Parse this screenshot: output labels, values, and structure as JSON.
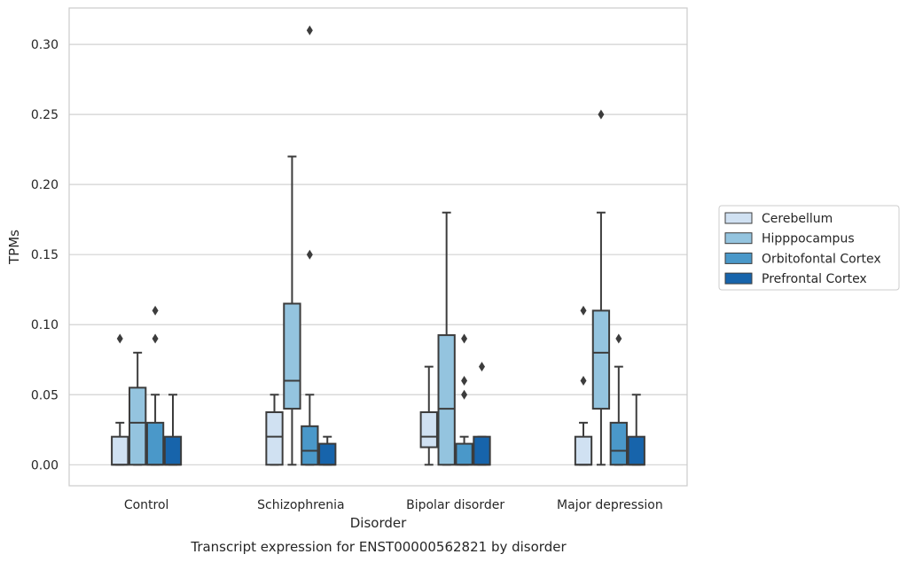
{
  "chart_data": {
    "type": "box",
    "title": "Transcript expression for ENST00000562821 by disorder",
    "xlabel": "Disorder",
    "ylabel": "TPMs",
    "ylim": [
      -0.015,
      0.326
    ],
    "yticks": [
      0.0,
      0.05,
      0.1,
      0.15,
      0.2,
      0.25,
      0.3
    ],
    "ytick_labels": [
      "0.00",
      "0.05",
      "0.10",
      "0.15",
      "0.20",
      "0.25",
      "0.30"
    ],
    "grid": true,
    "legend_position": "right",
    "categories": [
      "Control",
      "Schizophrenia",
      "Bipolar disorder",
      "Major depression"
    ],
    "series": [
      {
        "name": "Cerebellum",
        "color": "#d0e1f2",
        "boxes": [
          {
            "whislo": 0.0,
            "q1": 0.0,
            "med": 0.0,
            "q3": 0.02,
            "whishi": 0.03,
            "fliers": [
              0.09
            ]
          },
          {
            "whislo": 0.0,
            "q1": 0.0,
            "med": 0.02,
            "q3": 0.0375,
            "whishi": 0.05,
            "fliers": []
          },
          {
            "whislo": 0.0,
            "q1": 0.0125,
            "med": 0.02,
            "q3": 0.0375,
            "whishi": 0.07,
            "fliers": []
          },
          {
            "whislo": 0.0,
            "q1": 0.0,
            "med": 0.0,
            "q3": 0.02,
            "whishi": 0.03,
            "fliers": [
              0.06,
              0.11
            ]
          }
        ]
      },
      {
        "name": "Hipppocampus",
        "color": "#94c4df",
        "boxes": [
          {
            "whislo": 0.0,
            "q1": 0.0,
            "med": 0.03,
            "q3": 0.055,
            "whishi": 0.08,
            "fliers": []
          },
          {
            "whislo": 0.0,
            "q1": 0.04,
            "med": 0.06,
            "q3": 0.115,
            "whishi": 0.22,
            "fliers": []
          },
          {
            "whislo": 0.0,
            "q1": 0.0,
            "med": 0.04,
            "q3": 0.0925,
            "whishi": 0.18,
            "fliers": []
          },
          {
            "whislo": 0.0,
            "q1": 0.04,
            "med": 0.08,
            "q3": 0.11,
            "whishi": 0.18,
            "fliers": [
              0.25
            ]
          }
        ]
      },
      {
        "name": "Orbitofontal Cortex",
        "color": "#4a98c9",
        "boxes": [
          {
            "whislo": 0.0,
            "q1": 0.0,
            "med": 0.0,
            "q3": 0.03,
            "whishi": 0.05,
            "fliers": [
              0.09,
              0.11
            ]
          },
          {
            "whislo": 0.0,
            "q1": 0.0,
            "med": 0.01,
            "q3": 0.0275,
            "whishi": 0.05,
            "fliers": [
              0.15,
              0.31
            ]
          },
          {
            "whislo": 0.0,
            "q1": 0.0,
            "med": 0.0,
            "q3": 0.015,
            "whishi": 0.02,
            "fliers": [
              0.05,
              0.06,
              0.09
            ]
          },
          {
            "whislo": 0.0,
            "q1": 0.0,
            "med": 0.01,
            "q3": 0.03,
            "whishi": 0.07,
            "fliers": [
              0.09
            ]
          }
        ]
      },
      {
        "name": "Prefrontal Cortex",
        "color": "#1764ab",
        "boxes": [
          {
            "whislo": 0.0,
            "q1": 0.0,
            "med": 0.0,
            "q3": 0.02,
            "whishi": 0.05,
            "fliers": []
          },
          {
            "whislo": 0.0,
            "q1": 0.0,
            "med": 0.0,
            "q3": 0.015,
            "whishi": 0.02,
            "fliers": []
          },
          {
            "whislo": 0.0,
            "q1": 0.0,
            "med": 0.0,
            "q3": 0.02,
            "whishi": 0.02,
            "fliers": [
              0.07
            ]
          },
          {
            "whislo": 0.0,
            "q1": 0.0,
            "med": 0.0,
            "q3": 0.02,
            "whishi": 0.05,
            "fliers": []
          }
        ]
      }
    ]
  }
}
